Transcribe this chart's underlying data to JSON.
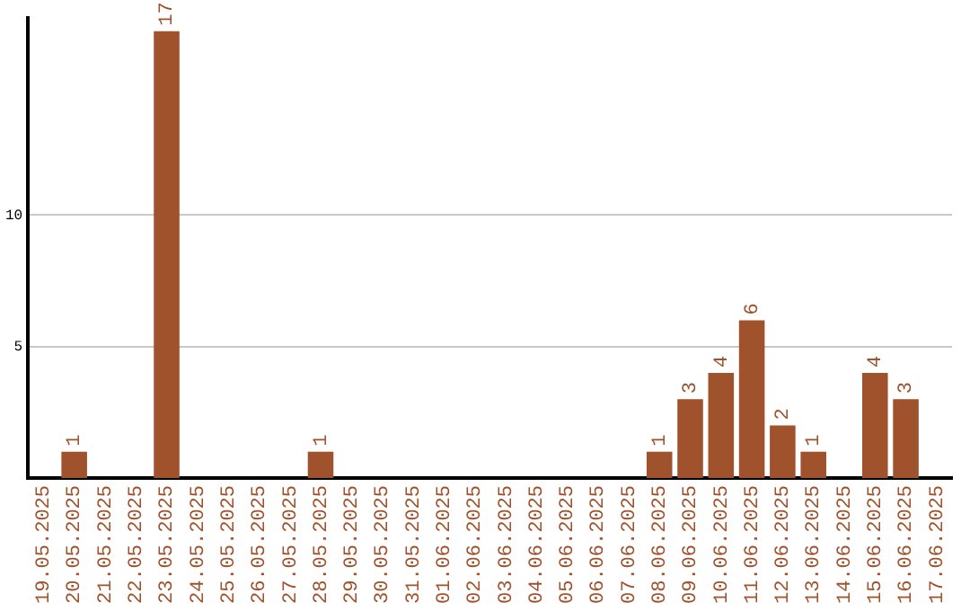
{
  "chart_data": {
    "type": "bar",
    "categories": [
      "19.05.2025",
      "20.05.2025",
      "21.05.2025",
      "22.05.2025",
      "23.05.2025",
      "24.05.2025",
      "25.05.2025",
      "26.05.2025",
      "27.05.2025",
      "28.05.2025",
      "29.05.2025",
      "30.05.2025",
      "31.05.2025",
      "01.06.2025",
      "02.06.2025",
      "03.06.2025",
      "04.06.2025",
      "05.06.2025",
      "06.06.2025",
      "07.06.2025",
      "08.06.2025",
      "09.06.2025",
      "10.06.2025",
      "11.06.2025",
      "12.06.2025",
      "13.06.2025",
      "14.06.2025",
      "15.06.2025",
      "16.06.2025",
      "17.06.2025"
    ],
    "values": [
      0,
      1,
      0,
      0,
      17,
      0,
      0,
      0,
      0,
      1,
      0,
      0,
      0,
      0,
      0,
      0,
      0,
      0,
      0,
      0,
      1,
      3,
      4,
      6,
      2,
      1,
      0,
      4,
      3,
      0
    ],
    "value_labels": [
      null,
      "1",
      null,
      null,
      "17",
      null,
      null,
      null,
      null,
      "1",
      null,
      null,
      null,
      null,
      null,
      null,
      null,
      null,
      null,
      null,
      "1",
      "3",
      "4",
      "6",
      "2",
      "1",
      null,
      "4",
      "3",
      null
    ],
    "color": "#a0522d",
    "ylim": [
      0,
      17.5
    ],
    "yticks": [
      5,
      10
    ],
    "grid": "y",
    "legend": false
  }
}
